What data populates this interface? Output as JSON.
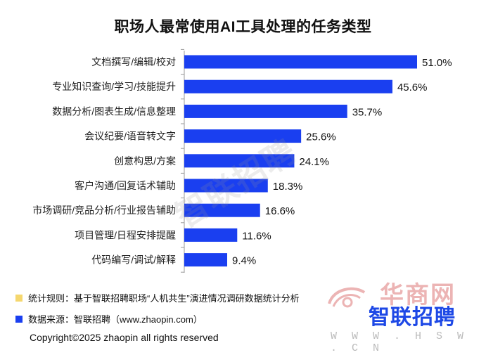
{
  "title": "职场人最常使用AI工具处理的任务类型",
  "colors": {
    "bar": "#1a3ff0",
    "note_square": "#f5d76e",
    "source_square": "#1a3ff0",
    "axis": "#999999"
  },
  "chart_data": {
    "type": "bar",
    "orientation": "horizontal",
    "title": "职场人最常使用AI工具处理的任务类型",
    "categories": [
      "文档撰写/编辑/校对",
      "专业知识查询/学习/技能提升",
      "数据分析/图表生成/信息整理",
      "会议纪要/语音转文字",
      "创意构思/方案",
      "客户沟通/回复话术辅助",
      "市场调研/竞品分析/行业报告辅助",
      "项目管理/日程安排提醒",
      "代码编写/调试/解释"
    ],
    "values": [
      51.0,
      45.6,
      35.7,
      25.6,
      24.1,
      18.3,
      16.6,
      11.6,
      9.4
    ],
    "value_labels": [
      "51.0%",
      "45.6%",
      "35.7%",
      "25.6%",
      "24.1%",
      "18.3%",
      "16.6%",
      "11.6%",
      "9.4%"
    ],
    "xlim": [
      0,
      60
    ],
    "grid": false
  },
  "watermark": "智联招聘",
  "footer": {
    "note": "统计规则：基于智联招聘职场“人机共生”演进情况调研数据统计分析",
    "source": "数据来源：智联招聘（www.zhaopin.com）",
    "copyright": "Copyright©2025 zhaopin all rights reserved"
  },
  "logos": {
    "zhaopin": "智联招聘",
    "hsw": "华商网",
    "hsw_url": "W W W . H S W . C N"
  }
}
